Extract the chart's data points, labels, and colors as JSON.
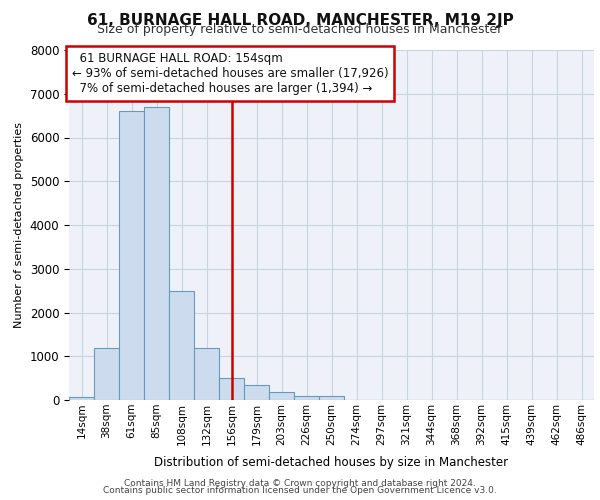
{
  "title": "61, BURNAGE HALL ROAD, MANCHESTER, M19 2JP",
  "subtitle": "Size of property relative to semi-detached houses in Manchester",
  "xlabel": "Distribution of semi-detached houses by size in Manchester",
  "ylabel": "Number of semi-detached properties",
  "footer1": "Contains HM Land Registry data © Crown copyright and database right 2024.",
  "footer2": "Contains public sector information licensed under the Open Government Licence v3.0.",
  "bin_labels": [
    "14sqm",
    "38sqm",
    "61sqm",
    "85sqm",
    "108sqm",
    "132sqm",
    "156sqm",
    "179sqm",
    "203sqm",
    "226sqm",
    "250sqm",
    "274sqm",
    "297sqm",
    "321sqm",
    "344sqm",
    "368sqm",
    "392sqm",
    "415sqm",
    "439sqm",
    "462sqm",
    "486sqm"
  ],
  "bar_values": [
    75,
    1200,
    6600,
    6700,
    2500,
    1200,
    500,
    350,
    175,
    100,
    100,
    0,
    0,
    0,
    0,
    0,
    0,
    0,
    0,
    0,
    0
  ],
  "property_bin_index": 6,
  "property_label": "61 BURNAGE HALL ROAD: 154sqm",
  "pct_smaller": 93,
  "count_smaller": "17,926",
  "pct_larger": 7,
  "count_larger": "1,394",
  "bar_color": "#ccdcee",
  "bar_edge_color": "#6699bb",
  "vline_color": "#cc0000",
  "annotation_box_color": "#cc0000",
  "ylim": [
    0,
    8000
  ],
  "yticks": [
    0,
    1000,
    2000,
    3000,
    4000,
    5000,
    6000,
    7000,
    8000
  ],
  "grid_color": "#c8d4e0",
  "bg_color": "#eef2f8",
  "title_fontsize": 11,
  "subtitle_fontsize": 9
}
